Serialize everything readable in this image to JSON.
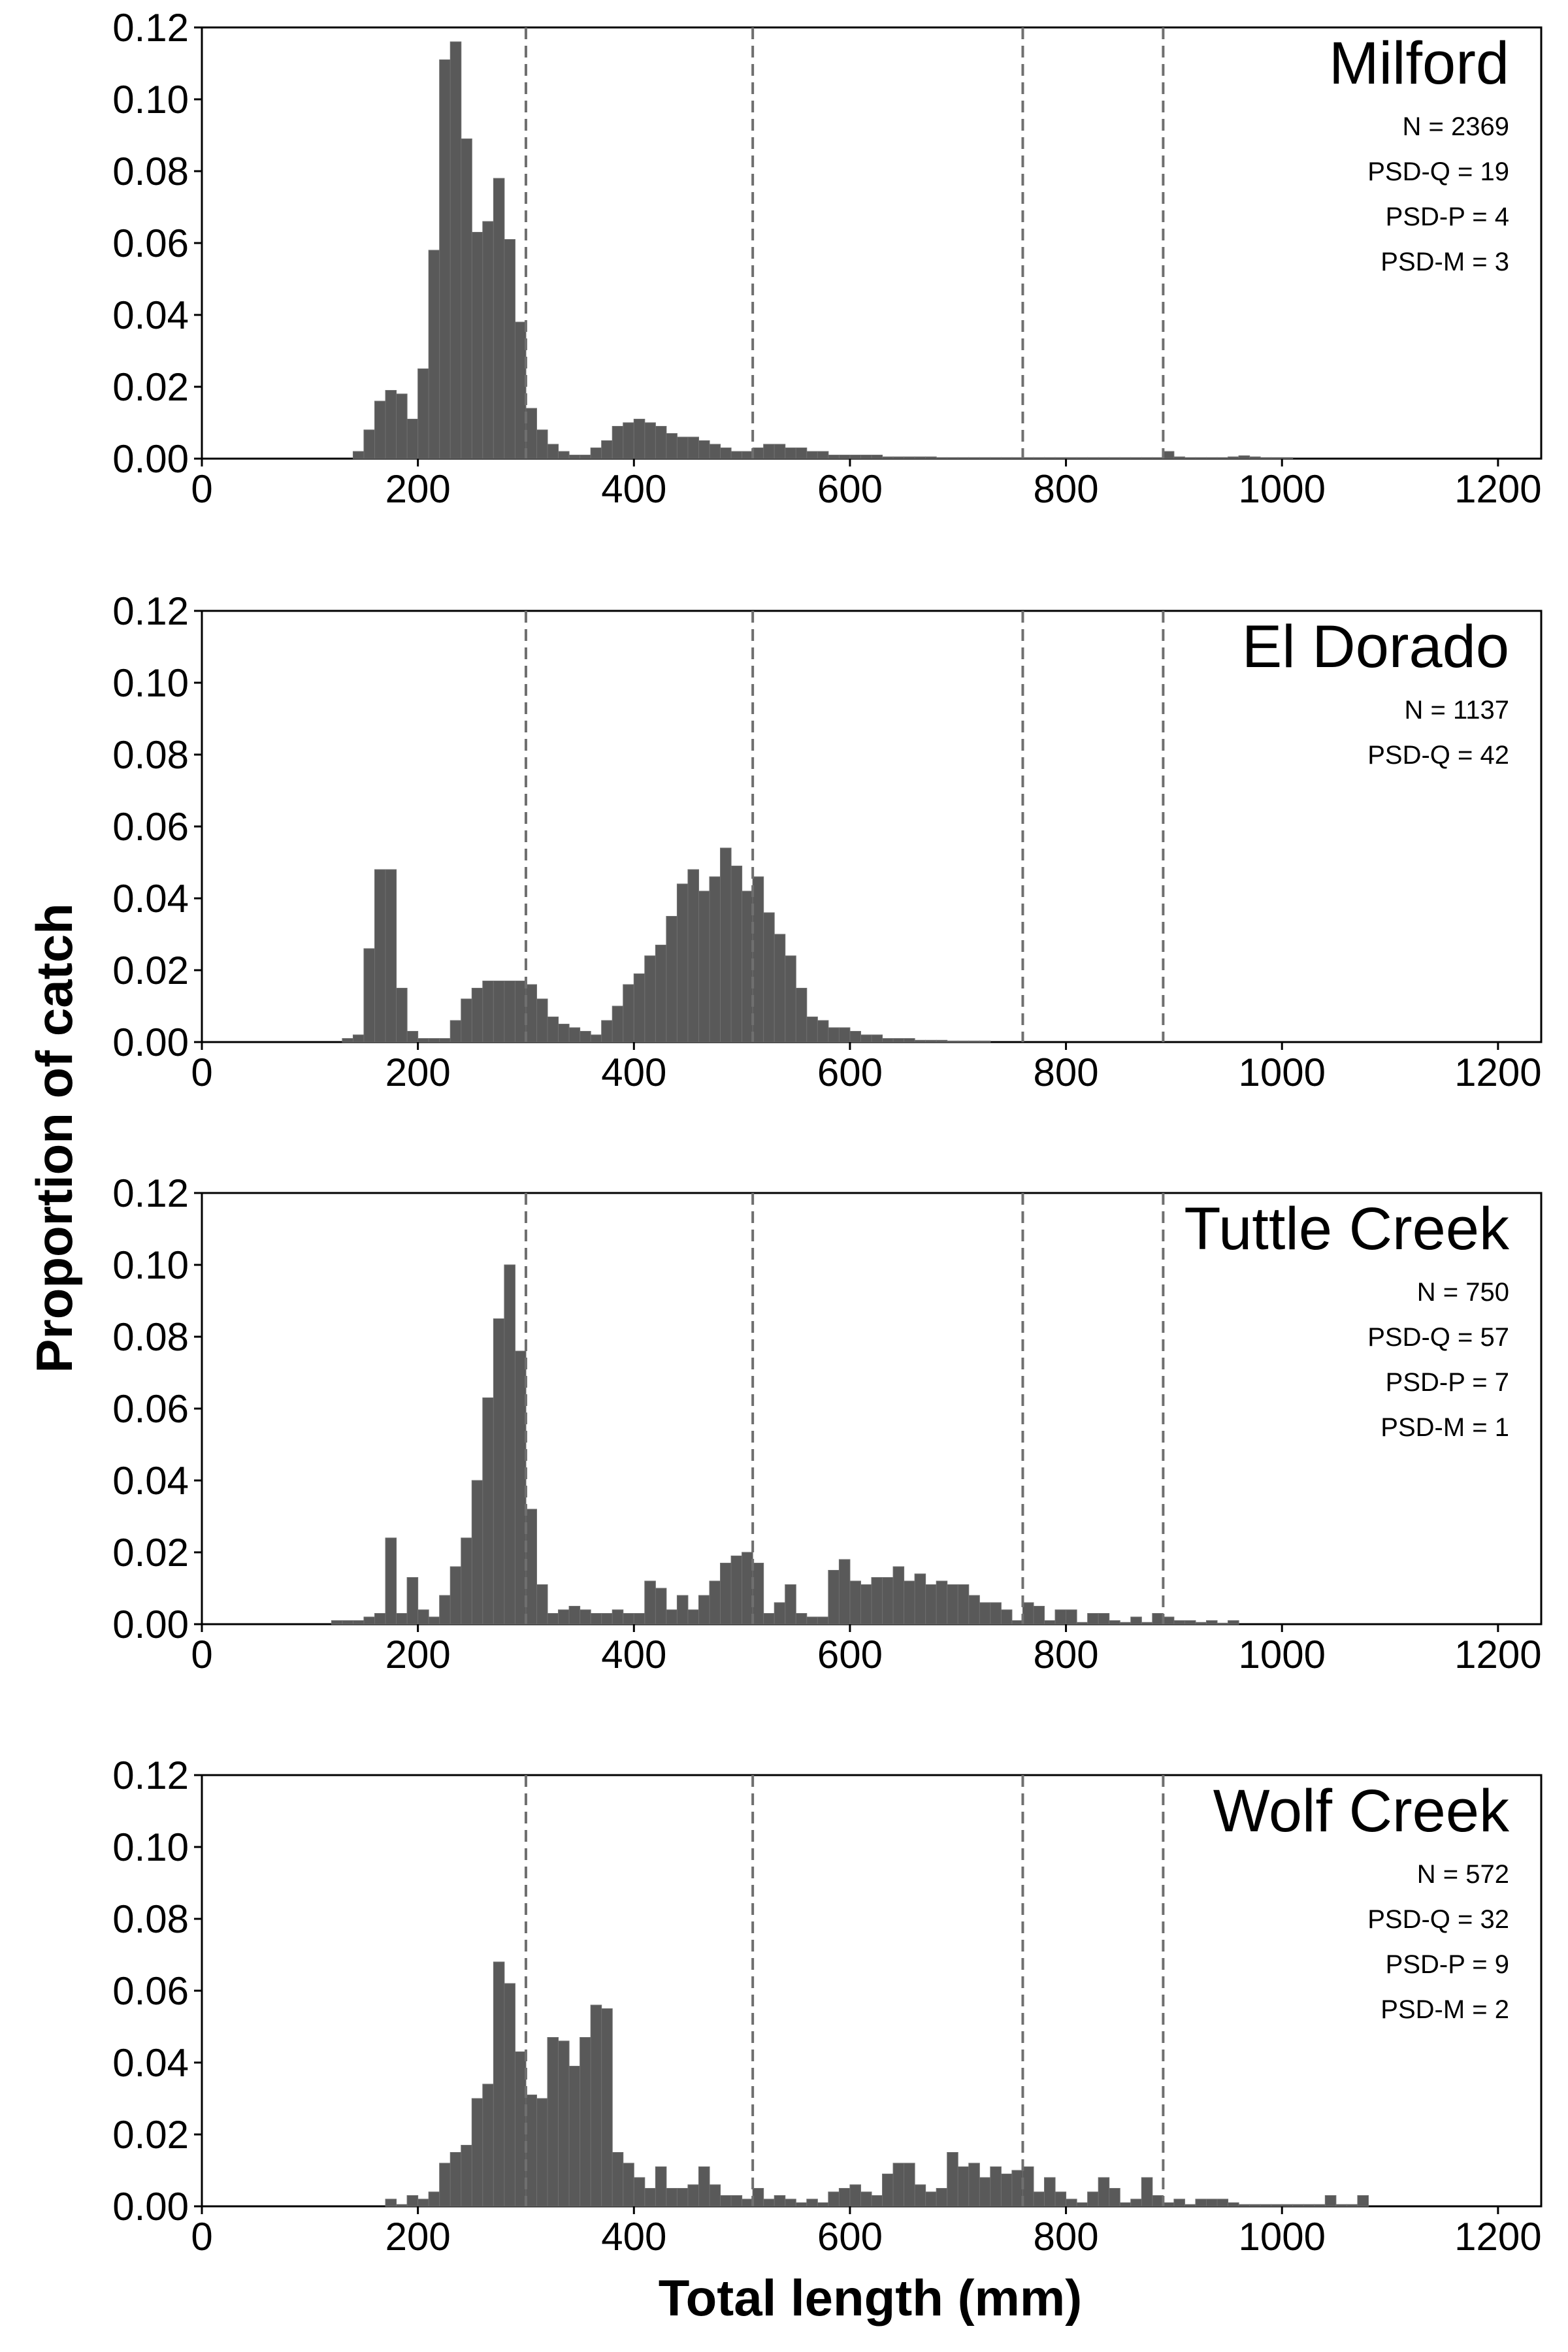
{
  "chart_data": {
    "type": "bar",
    "xlabel": "Total length (mm)",
    "ylabel": "Proportion of catch",
    "xlim": [
      0,
      1240
    ],
    "ylim": [
      0,
      0.12
    ],
    "x_ticks": [
      "0",
      "200",
      "400",
      "600",
      "800",
      "1000",
      "1200"
    ],
    "y_ticks": [
      "0.00",
      "0.02",
      "0.04",
      "0.06",
      "0.08",
      "0.10",
      "0.12"
    ],
    "bin_width": 10,
    "bar_color": "#595959",
    "reference_lines_x": [
      300,
      510,
      760,
      890
    ],
    "panels": [
      {
        "title": "Milford",
        "stats": [
          "N = 2369",
          "PSD-Q = 19",
          "PSD-P = 4",
          "PSD-M = 3"
        ],
        "bins": [
          140,
          150,
          160,
          170,
          180,
          190,
          200,
          210,
          220,
          230,
          240,
          250,
          260,
          270,
          280,
          290,
          300,
          310,
          320,
          330,
          340,
          350,
          360,
          370,
          380,
          390,
          400,
          410,
          420,
          430,
          440,
          450,
          460,
          470,
          480,
          490,
          500,
          510,
          520,
          530,
          540,
          550,
          560,
          570,
          580,
          590,
          600,
          610,
          620,
          630,
          640,
          650,
          660,
          670,
          680,
          690,
          700,
          710,
          720,
          730,
          740,
          750,
          760,
          770,
          780,
          790,
          800,
          810,
          820,
          830,
          840,
          850,
          860,
          870,
          880,
          890,
          900,
          910,
          920,
          930,
          940,
          950,
          960,
          970,
          980,
          990,
          1000
        ],
        "values": [
          0.002,
          0.008,
          0.016,
          0.019,
          0.018,
          0.011,
          0.025,
          0.058,
          0.111,
          0.116,
          0.089,
          0.063,
          0.066,
          0.078,
          0.061,
          0.038,
          0.014,
          0.008,
          0.004,
          0.002,
          0.001,
          0.001,
          0.003,
          0.005,
          0.009,
          0.01,
          0.011,
          0.01,
          0.009,
          0.007,
          0.006,
          0.006,
          0.005,
          0.004,
          0.003,
          0.002,
          0.002,
          0.003,
          0.004,
          0.004,
          0.003,
          0.003,
          0.002,
          0.002,
          0.001,
          0.001,
          0.001,
          0.001,
          0.001,
          0.0005,
          0.0005,
          0.0005,
          0.0005,
          0.0005,
          0.0003,
          0.0003,
          0.0003,
          0.0003,
          0.0003,
          0.0003,
          0.0003,
          0.0003,
          0.0003,
          0.0003,
          0.0003,
          0.0003,
          0.0003,
          0.0003,
          0.0003,
          0.0003,
          0.0003,
          0.0003,
          0.0003,
          0.0003,
          0.0003,
          0.002,
          0.0005,
          0.0003,
          0.0003,
          0.0003,
          0.0003,
          0.0005,
          0.0008,
          0.0005,
          0.0003,
          0.0003,
          0.0003
        ]
      },
      {
        "title": "El Dorado",
        "stats": [
          "N = 1137",
          "PSD-Q = 42"
        ],
        "bins": [
          130,
          140,
          150,
          160,
          170,
          180,
          190,
          200,
          210,
          220,
          230,
          240,
          250,
          260,
          270,
          280,
          290,
          300,
          310,
          320,
          330,
          340,
          350,
          360,
          370,
          380,
          390,
          400,
          410,
          420,
          430,
          440,
          450,
          460,
          470,
          480,
          490,
          500,
          510,
          520,
          530,
          540,
          550,
          560,
          570,
          580,
          590,
          600,
          610,
          620,
          630,
          640,
          650,
          660,
          670,
          680,
          690,
          700,
          710,
          720
        ],
        "values": [
          0.001,
          0.002,
          0.026,
          0.048,
          0.048,
          0.015,
          0.003,
          0.001,
          0.001,
          0.001,
          0.006,
          0.012,
          0.015,
          0.017,
          0.017,
          0.017,
          0.017,
          0.016,
          0.012,
          0.007,
          0.005,
          0.004,
          0.003,
          0.002,
          0.006,
          0.01,
          0.016,
          0.019,
          0.024,
          0.027,
          0.035,
          0.044,
          0.048,
          0.042,
          0.046,
          0.054,
          0.049,
          0.042,
          0.046,
          0.036,
          0.03,
          0.024,
          0.015,
          0.007,
          0.006,
          0.004,
          0.004,
          0.003,
          0.002,
          0.002,
          0.001,
          0.001,
          0.001,
          0.0005,
          0.0005,
          0.0005,
          0.0003,
          0.0003,
          0.0003,
          0.0003
        ]
      },
      {
        "title": "Tuttle Creek",
        "stats": [
          "N = 750",
          "PSD-Q = 57",
          "PSD-P = 7",
          "PSD-M = 1"
        ],
        "bins": [
          120,
          130,
          140,
          150,
          160,
          170,
          180,
          190,
          200,
          210,
          220,
          230,
          240,
          250,
          260,
          270,
          280,
          290,
          300,
          310,
          320,
          330,
          340,
          350,
          360,
          370,
          380,
          390,
          400,
          410,
          420,
          430,
          440,
          450,
          460,
          470,
          480,
          490,
          500,
          510,
          520,
          530,
          540,
          550,
          560,
          570,
          580,
          590,
          600,
          610,
          620,
          630,
          640,
          650,
          660,
          670,
          680,
          690,
          700,
          710,
          720,
          730,
          740,
          750,
          760,
          770,
          780,
          790,
          800,
          810,
          820,
          830,
          840,
          850,
          860,
          870,
          880,
          890,
          900,
          910,
          920,
          930,
          940,
          950
        ],
        "values": [
          0.001,
          0.001,
          0.001,
          0.002,
          0.003,
          0.024,
          0.003,
          0.013,
          0.004,
          0.002,
          0.008,
          0.016,
          0.024,
          0.04,
          0.063,
          0.085,
          0.1,
          0.076,
          0.032,
          0.011,
          0.003,
          0.004,
          0.005,
          0.004,
          0.003,
          0.003,
          0.004,
          0.003,
          0.003,
          0.012,
          0.01,
          0.004,
          0.008,
          0.004,
          0.008,
          0.012,
          0.017,
          0.019,
          0.02,
          0.017,
          0.003,
          0.006,
          0.011,
          0.003,
          0.002,
          0.002,
          0.015,
          0.018,
          0.012,
          0.011,
          0.013,
          0.013,
          0.016,
          0.012,
          0.014,
          0.011,
          0.012,
          0.011,
          0.011,
          0.008,
          0.006,
          0.006,
          0.004,
          0.001,
          0.006,
          0.005,
          0.001,
          0.004,
          0.004,
          0.0005,
          0.003,
          0.003,
          0.001,
          0.0005,
          0.002,
          0.0005,
          0.003,
          0.002,
          0.001,
          0.001,
          0.0005,
          0.001,
          0.0003,
          0.001
        ]
      },
      {
        "title": "Wolf Creek",
        "stats": [
          "N = 572",
          "PSD-Q = 32",
          "PSD-P = 9",
          "PSD-M = 2"
        ],
        "bins": [
          170,
          180,
          190,
          200,
          210,
          220,
          230,
          240,
          250,
          260,
          270,
          280,
          290,
          300,
          310,
          320,
          330,
          340,
          350,
          360,
          370,
          380,
          390,
          400,
          410,
          420,
          430,
          440,
          450,
          460,
          470,
          480,
          490,
          500,
          510,
          520,
          530,
          540,
          550,
          560,
          570,
          580,
          590,
          600,
          610,
          620,
          630,
          640,
          650,
          660,
          670,
          680,
          690,
          700,
          710,
          720,
          730,
          740,
          750,
          760,
          770,
          780,
          790,
          800,
          810,
          820,
          830,
          840,
          850,
          860,
          870,
          880,
          890,
          900,
          910,
          920,
          930,
          940,
          950,
          960,
          970,
          980,
          990,
          1000,
          1010,
          1020,
          1030,
          1040,
          1050,
          1060,
          1070
        ],
        "values": [
          0.002,
          0.0005,
          0.003,
          0.002,
          0.004,
          0.012,
          0.015,
          0.017,
          0.03,
          0.034,
          0.068,
          0.062,
          0.043,
          0.031,
          0.03,
          0.047,
          0.046,
          0.039,
          0.047,
          0.056,
          0.055,
          0.015,
          0.012,
          0.008,
          0.005,
          0.011,
          0.005,
          0.005,
          0.006,
          0.011,
          0.006,
          0.003,
          0.003,
          0.002,
          0.005,
          0.002,
          0.003,
          0.002,
          0.001,
          0.002,
          0.001,
          0.004,
          0.005,
          0.006,
          0.004,
          0.003,
          0.009,
          0.012,
          0.012,
          0.006,
          0.004,
          0.005,
          0.015,
          0.011,
          0.012,
          0.008,
          0.011,
          0.009,
          0.01,
          0.011,
          0.004,
          0.008,
          0.004,
          0.002,
          0.001,
          0.004,
          0.008,
          0.005,
          0.001,
          0.002,
          0.008,
          0.003,
          0.001,
          0.002,
          0.0005,
          0.002,
          0.002,
          0.002,
          0.001,
          0.0005,
          0.0005,
          0.0005,
          0.0005,
          0.0005,
          0.0005,
          0.0005,
          0.0005,
          0.003,
          0.0005,
          0.0005,
          0.003
        ]
      }
    ]
  }
}
